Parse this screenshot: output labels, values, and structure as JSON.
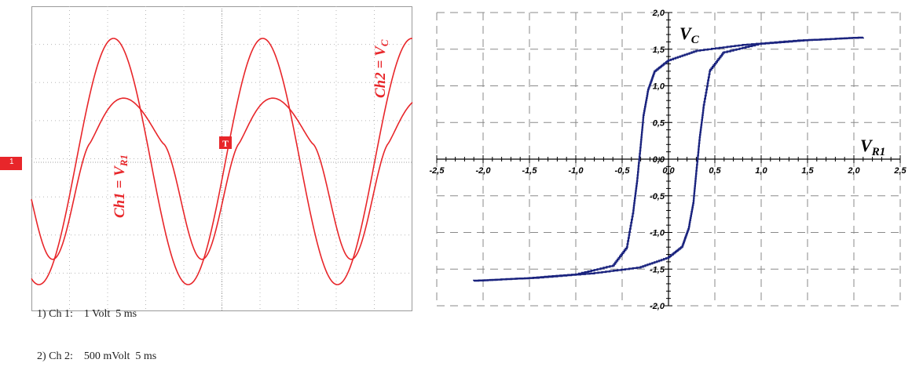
{
  "chart_data": [
    {
      "type": "line",
      "title": "",
      "channel_marker": "1",
      "trigger_marker": "T",
      "series": [
        {
          "name": "Ch1 = V_R1",
          "label_parts": [
            "Ch1 = V",
            "R1"
          ],
          "color": "#e8262a"
        },
        {
          "name": "Ch2 = V_C",
          "label_parts": [
            "Ch2 = V",
            "C"
          ],
          "color": "#e8262a"
        }
      ],
      "legend": [
        {
          "index": "1)",
          "channel": "Ch 1:",
          "scale": "1 Volt  5 ms"
        },
        {
          "index": "2)",
          "channel": "Ch 2:",
          "scale": "500 mVolt  5 ms"
        }
      ],
      "divisions": {
        "x": 10,
        "y": 8
      },
      "grid": true
    },
    {
      "type": "line",
      "title": "",
      "xlabel_parts": [
        "V",
        "R1"
      ],
      "ylabel_parts": [
        "V",
        "C"
      ],
      "xlim": [
        -2.5,
        2.5
      ],
      "ylim": [
        -2.0,
        2.0
      ],
      "xticks": [
        "-2,5",
        "-2,0",
        "-1,5",
        "-1,0",
        "-0,5",
        "0,0",
        "0,5",
        "1,0",
        "1,5",
        "2,0",
        "2,5"
      ],
      "yticks": [
        "2,0",
        "1,5",
        "1,0",
        "0,5",
        "0,0",
        "-0,5",
        "-1,0",
        "-1,5",
        "-2,0"
      ],
      "grid": true,
      "series": [
        {
          "name": "hysteresis loop",
          "color": "#1a237e",
          "upper": [
            [
              -2.1,
              -1.66
            ],
            [
              -1.5,
              -1.62
            ],
            [
              -1.0,
              -1.57
            ],
            [
              -0.6,
              -1.45
            ],
            [
              -0.45,
              -1.2
            ],
            [
              -0.38,
              -0.7
            ],
            [
              -0.34,
              -0.3
            ],
            [
              -0.3,
              0.2
            ],
            [
              -0.27,
              0.6
            ],
            [
              -0.22,
              0.95
            ],
            [
              -0.15,
              1.2
            ],
            [
              0.0,
              1.35
            ],
            [
              0.3,
              1.48
            ],
            [
              0.8,
              1.56
            ],
            [
              1.4,
              1.62
            ],
            [
              2.1,
              1.66
            ]
          ],
          "lower": [
            [
              2.1,
              1.66
            ],
            [
              1.5,
              1.62
            ],
            [
              1.0,
              1.57
            ],
            [
              0.6,
              1.45
            ],
            [
              0.45,
              1.2
            ],
            [
              0.38,
              0.7
            ],
            [
              0.34,
              0.3
            ],
            [
              0.3,
              -0.2
            ],
            [
              0.27,
              -0.6
            ],
            [
              0.22,
              -0.95
            ],
            [
              0.15,
              -1.2
            ],
            [
              0.0,
              -1.35
            ],
            [
              -0.3,
              -1.48
            ],
            [
              -0.8,
              -1.56
            ],
            [
              -1.4,
              -1.62
            ],
            [
              -2.1,
              -1.66
            ]
          ]
        }
      ]
    }
  ]
}
